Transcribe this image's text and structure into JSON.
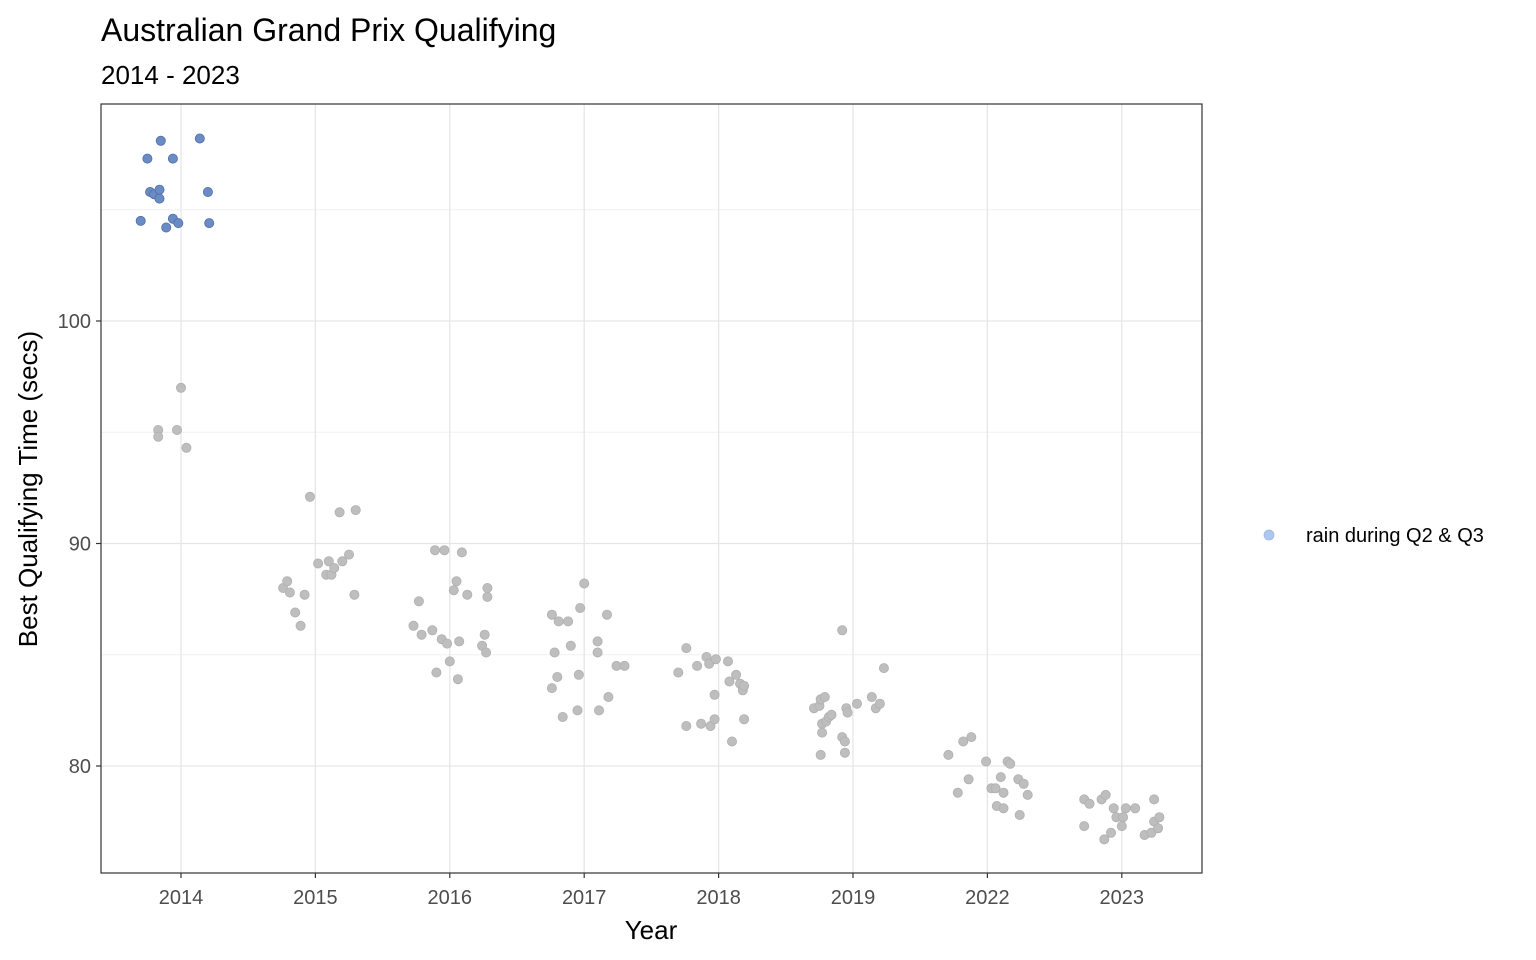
{
  "chart_data": {
    "type": "scatter",
    "title": "Australian Grand Prix Qualifying",
    "subtitle": "2014 - 2023",
    "xlabel": "Year",
    "ylabel": "Best Qualifying Time (secs)",
    "categories": [
      "2014",
      "2015",
      "2016",
      "2017",
      "2018",
      "2019",
      "2022",
      "2023"
    ],
    "ylim": [
      75.2,
      109.8
    ],
    "yticks": [
      80,
      90,
      100
    ],
    "grid": true,
    "legend": {
      "position": "right",
      "entries": [
        {
          "label": "rain during Q2 & Q3",
          "color": "#aec7f0"
        }
      ]
    },
    "colors": {
      "rain": "#6a8bc4",
      "dry": "#bebebe"
    },
    "series": [
      {
        "category": "2014",
        "rain": true,
        "points": [
          {
            "offset": -0.3,
            "y": 104.5
          },
          {
            "offset": -0.25,
            "y": 107.3
          },
          {
            "offset": -0.23,
            "y": 105.8
          },
          {
            "offset": -0.2,
            "y": 105.7
          },
          {
            "offset": -0.16,
            "y": 105.5
          },
          {
            "offset": -0.16,
            "y": 105.9
          },
          {
            "offset": -0.15,
            "y": 108.1
          },
          {
            "offset": -0.11,
            "y": 104.2
          },
          {
            "offset": -0.06,
            "y": 107.3
          },
          {
            "offset": -0.06,
            "y": 104.6
          },
          {
            "offset": -0.02,
            "y": 104.4
          },
          {
            "offset": 0.14,
            "y": 108.2
          },
          {
            "offset": 0.2,
            "y": 105.8
          },
          {
            "offset": 0.21,
            "y": 104.4
          }
        ]
      },
      {
        "category": "2014",
        "rain": false,
        "points": [
          {
            "offset": -0.17,
            "y": 95.1
          },
          {
            "offset": -0.17,
            "y": 94.8
          },
          {
            "offset": -0.03,
            "y": 95.1
          },
          {
            "offset": 0.0,
            "y": 97.0
          },
          {
            "offset": 0.04,
            "y": 94.3
          }
        ]
      },
      {
        "category": "2015",
        "rain": false,
        "points": [
          {
            "offset": -0.24,
            "y": 88.0
          },
          {
            "offset": -0.21,
            "y": 88.3
          },
          {
            "offset": -0.19,
            "y": 87.8
          },
          {
            "offset": -0.15,
            "y": 86.9
          },
          {
            "offset": -0.11,
            "y": 86.3
          },
          {
            "offset": -0.08,
            "y": 87.7
          },
          {
            "offset": -0.04,
            "y": 92.1
          },
          {
            "offset": 0.02,
            "y": 89.1
          },
          {
            "offset": 0.08,
            "y": 88.6
          },
          {
            "offset": 0.1,
            "y": 89.2
          },
          {
            "offset": 0.12,
            "y": 88.6
          },
          {
            "offset": 0.14,
            "y": 88.9
          },
          {
            "offset": 0.18,
            "y": 91.4
          },
          {
            "offset": 0.2,
            "y": 89.2
          },
          {
            "offset": 0.25,
            "y": 89.5
          },
          {
            "offset": 0.29,
            "y": 87.7
          },
          {
            "offset": 0.3,
            "y": 91.5
          }
        ]
      },
      {
        "category": "2016",
        "rain": false,
        "points": [
          {
            "offset": -0.27,
            "y": 86.3
          },
          {
            "offset": -0.23,
            "y": 87.4
          },
          {
            "offset": -0.21,
            "y": 85.9
          },
          {
            "offset": -0.13,
            "y": 86.1
          },
          {
            "offset": -0.11,
            "y": 89.7
          },
          {
            "offset": -0.1,
            "y": 84.2
          },
          {
            "offset": -0.06,
            "y": 85.7
          },
          {
            "offset": -0.04,
            "y": 89.7
          },
          {
            "offset": -0.02,
            "y": 85.5
          },
          {
            "offset": 0.0,
            "y": 84.7
          },
          {
            "offset": 0.03,
            "y": 87.9
          },
          {
            "offset": 0.05,
            "y": 88.3
          },
          {
            "offset": 0.07,
            "y": 85.6
          },
          {
            "offset": 0.06,
            "y": 83.9
          },
          {
            "offset": 0.09,
            "y": 89.6
          },
          {
            "offset": 0.13,
            "y": 87.7
          },
          {
            "offset": 0.24,
            "y": 85.4
          },
          {
            "offset": 0.26,
            "y": 85.9
          },
          {
            "offset": 0.27,
            "y": 85.1
          },
          {
            "offset": 0.28,
            "y": 87.6
          },
          {
            "offset": 0.28,
            "y": 88.0
          }
        ]
      },
      {
        "category": "2017",
        "rain": false,
        "points": [
          {
            "offset": -0.24,
            "y": 86.8
          },
          {
            "offset": -0.24,
            "y": 83.5
          },
          {
            "offset": -0.22,
            "y": 85.1
          },
          {
            "offset": -0.2,
            "y": 84.0
          },
          {
            "offset": -0.19,
            "y": 86.5
          },
          {
            "offset": -0.16,
            "y": 82.2
          },
          {
            "offset": -0.12,
            "y": 86.5
          },
          {
            "offset": -0.1,
            "y": 85.4
          },
          {
            "offset": -0.05,
            "y": 82.5
          },
          {
            "offset": -0.04,
            "y": 84.1
          },
          {
            "offset": -0.03,
            "y": 87.1
          },
          {
            "offset": 0.0,
            "y": 88.2
          },
          {
            "offset": 0.1,
            "y": 85.6
          },
          {
            "offset": 0.1,
            "y": 85.1
          },
          {
            "offset": 0.11,
            "y": 82.5
          },
          {
            "offset": 0.17,
            "y": 86.8
          },
          {
            "offset": 0.18,
            "y": 83.1
          },
          {
            "offset": 0.24,
            "y": 84.5
          },
          {
            "offset": 0.3,
            "y": 84.5
          }
        ]
      },
      {
        "category": "2018",
        "rain": false,
        "points": [
          {
            "offset": -0.3,
            "y": 84.2
          },
          {
            "offset": -0.24,
            "y": 85.3
          },
          {
            "offset": -0.24,
            "y": 81.8
          },
          {
            "offset": -0.16,
            "y": 84.5
          },
          {
            "offset": -0.13,
            "y": 81.9
          },
          {
            "offset": -0.09,
            "y": 84.9
          },
          {
            "offset": -0.07,
            "y": 84.6
          },
          {
            "offset": -0.06,
            "y": 81.8
          },
          {
            "offset": -0.03,
            "y": 83.2
          },
          {
            "offset": -0.03,
            "y": 82.1
          },
          {
            "offset": -0.02,
            "y": 84.8
          },
          {
            "offset": 0.07,
            "y": 84.7
          },
          {
            "offset": 0.08,
            "y": 83.8
          },
          {
            "offset": 0.1,
            "y": 81.1
          },
          {
            "offset": 0.13,
            "y": 84.1
          },
          {
            "offset": 0.16,
            "y": 83.7
          },
          {
            "offset": 0.18,
            "y": 83.4
          },
          {
            "offset": 0.19,
            "y": 82.1
          },
          {
            "offset": 0.19,
            "y": 83.6
          }
        ]
      },
      {
        "category": "2019",
        "rain": false,
        "points": [
          {
            "offset": -0.29,
            "y": 82.6
          },
          {
            "offset": -0.25,
            "y": 82.7
          },
          {
            "offset": -0.24,
            "y": 83.0
          },
          {
            "offset": -0.24,
            "y": 80.5
          },
          {
            "offset": -0.23,
            "y": 81.9
          },
          {
            "offset": -0.23,
            "y": 81.5
          },
          {
            "offset": -0.21,
            "y": 83.1
          },
          {
            "offset": -0.2,
            "y": 82.0
          },
          {
            "offset": -0.18,
            "y": 82.2
          },
          {
            "offset": -0.16,
            "y": 82.3
          },
          {
            "offset": -0.08,
            "y": 81.3
          },
          {
            "offset": -0.08,
            "y": 86.1
          },
          {
            "offset": -0.06,
            "y": 80.6
          },
          {
            "offset": -0.06,
            "y": 81.1
          },
          {
            "offset": -0.05,
            "y": 82.6
          },
          {
            "offset": -0.04,
            "y": 82.4
          },
          {
            "offset": 0.03,
            "y": 82.8
          },
          {
            "offset": 0.14,
            "y": 83.1
          },
          {
            "offset": 0.17,
            "y": 82.6
          },
          {
            "offset": 0.2,
            "y": 82.8
          },
          {
            "offset": 0.23,
            "y": 84.4
          }
        ]
      },
      {
        "category": "2022",
        "rain": false,
        "points": [
          {
            "offset": -0.29,
            "y": 80.5
          },
          {
            "offset": -0.22,
            "y": 78.8
          },
          {
            "offset": -0.18,
            "y": 81.1
          },
          {
            "offset": -0.14,
            "y": 79.4
          },
          {
            "offset": -0.12,
            "y": 81.3
          },
          {
            "offset": -0.01,
            "y": 80.2
          },
          {
            "offset": 0.03,
            "y": 79.0
          },
          {
            "offset": 0.06,
            "y": 79.0
          },
          {
            "offset": 0.07,
            "y": 78.2
          },
          {
            "offset": 0.1,
            "y": 79.5
          },
          {
            "offset": 0.12,
            "y": 78.8
          },
          {
            "offset": 0.12,
            "y": 78.1
          },
          {
            "offset": 0.15,
            "y": 80.2
          },
          {
            "offset": 0.17,
            "y": 80.1
          },
          {
            "offset": 0.23,
            "y": 79.4
          },
          {
            "offset": 0.24,
            "y": 77.8
          },
          {
            "offset": 0.27,
            "y": 79.2
          },
          {
            "offset": 0.3,
            "y": 78.7
          }
        ]
      },
      {
        "category": "2023",
        "rain": false,
        "points": [
          {
            "offset": -0.28,
            "y": 78.5
          },
          {
            "offset": -0.28,
            "y": 77.3
          },
          {
            "offset": -0.24,
            "y": 78.3
          },
          {
            "offset": -0.15,
            "y": 78.5
          },
          {
            "offset": -0.13,
            "y": 76.7
          },
          {
            "offset": -0.12,
            "y": 78.7
          },
          {
            "offset": -0.08,
            "y": 77.0
          },
          {
            "offset": -0.06,
            "y": 78.1
          },
          {
            "offset": -0.04,
            "y": 77.7
          },
          {
            "offset": 0.0,
            "y": 77.3
          },
          {
            "offset": 0.01,
            "y": 77.7
          },
          {
            "offset": 0.03,
            "y": 78.1
          },
          {
            "offset": 0.1,
            "y": 78.1
          },
          {
            "offset": 0.17,
            "y": 76.9
          },
          {
            "offset": 0.22,
            "y": 77.0
          },
          {
            "offset": 0.24,
            "y": 78.5
          },
          {
            "offset": 0.24,
            "y": 77.5
          },
          {
            "offset": 0.27,
            "y": 77.2
          },
          {
            "offset": 0.28,
            "y": 77.7
          }
        ]
      }
    ]
  }
}
